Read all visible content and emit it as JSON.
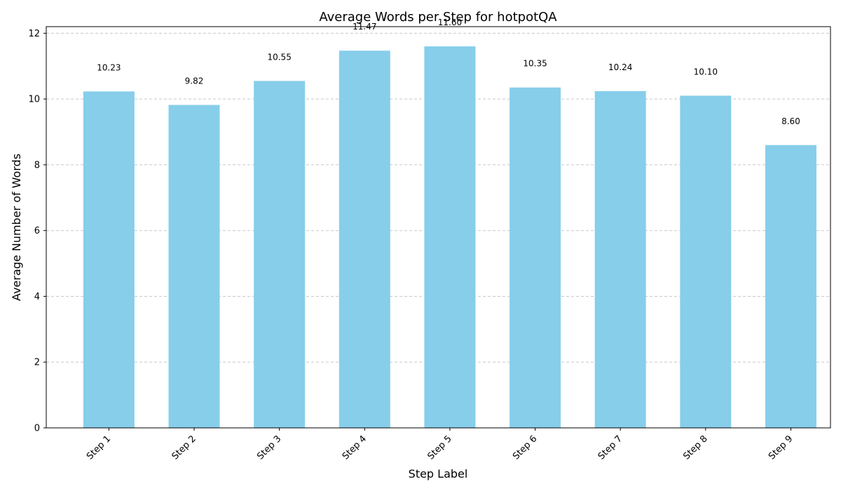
{
  "chart_data": {
    "type": "bar",
    "title": "Average Words per Step for hotpotQA",
    "xlabel": "Step Label",
    "ylabel": "Average Number of Words",
    "categories": [
      "Step 1",
      "Step 2",
      "Step 3",
      "Step 4",
      "Step 5",
      "Step 6",
      "Step 7",
      "Step 8",
      "Step 9"
    ],
    "values": [
      10.23,
      9.82,
      10.55,
      11.47,
      11.6,
      10.35,
      10.24,
      10.1,
      8.6
    ],
    "value_labels": [
      "10.23",
      "9.82",
      "10.55",
      "11.47",
      "11.60",
      "10.35",
      "10.24",
      "10.10",
      "8.60"
    ],
    "ylim": [
      0,
      12.2
    ],
    "yticks": [
      0,
      2,
      4,
      6,
      8,
      10,
      12
    ],
    "ytick_labels": [
      "0",
      "2",
      "4",
      "6",
      "8",
      "10",
      "12"
    ],
    "grid": "y-dashed",
    "bar_color": "#87CEEB",
    "grid_color": "#c8c8c8"
  }
}
